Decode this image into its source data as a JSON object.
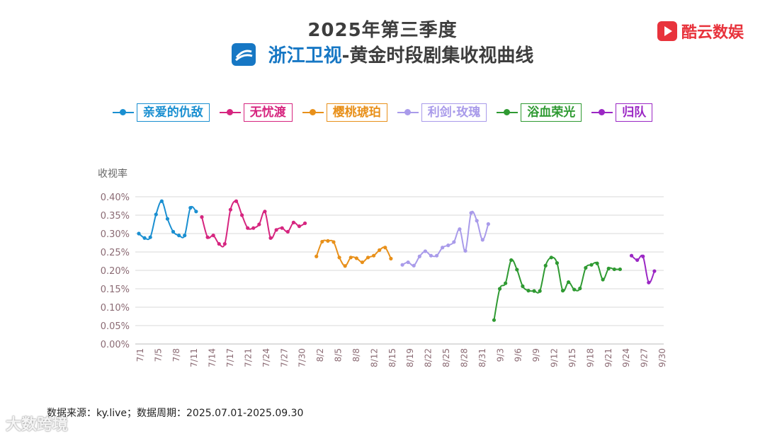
{
  "header": {
    "title_line1": "2025年第三季度",
    "channel": "浙江卫视",
    "subtitle_rest": "-黄金时段剧集收视曲线"
  },
  "brand": {
    "name": "酷云数娱"
  },
  "footer": {
    "source": "数据来源：ky.live；数据周期：2025.07.01-2025.09.30"
  },
  "watermark": "大数跨境",
  "colors": {
    "axis_tick": "#8b6b74",
    "grid": "#d9d9d9"
  },
  "chart_data": {
    "type": "line",
    "ylabel": "收视率",
    "ylim": [
      0,
      0.4
    ],
    "yticks": [
      "0.00%",
      "0.05%",
      "0.10%",
      "0.15%",
      "0.20%",
      "0.25%",
      "0.30%",
      "0.35%",
      "0.40%"
    ],
    "xrange": [
      "2025-07-01",
      "2025-09-30"
    ],
    "xticks": [
      "7/1",
      "7/5",
      "7/8",
      "7/11",
      "7/14",
      "7/17",
      "7/21",
      "7/24",
      "7/27",
      "7/30",
      "8/2",
      "8/5",
      "8/8",
      "8/12",
      "8/15",
      "8/19",
      "8/22",
      "8/25",
      "8/28",
      "8/31",
      "9/3",
      "9/6",
      "9/9",
      "9/12",
      "9/15",
      "9/18",
      "9/21",
      "9/24",
      "9/27",
      "9/30"
    ],
    "series": [
      {
        "name": "亲爱的仇敌",
        "color": "#1a8fd1",
        "points": [
          [
            "2025-07-01",
            0.3
          ],
          [
            "2025-07-02",
            0.288
          ],
          [
            "2025-07-03",
            0.29
          ],
          [
            "2025-07-04",
            0.352
          ],
          [
            "2025-07-05",
            0.388
          ],
          [
            "2025-07-06",
            0.34
          ],
          [
            "2025-07-07",
            0.305
          ],
          [
            "2025-07-08",
            0.295
          ],
          [
            "2025-07-09",
            0.295
          ],
          [
            "2025-07-10",
            0.37
          ],
          [
            "2025-07-11",
            0.36
          ]
        ]
      },
      {
        "name": "无忧渡",
        "color": "#d6257f",
        "points": [
          [
            "2025-07-12",
            0.345
          ],
          [
            "2025-07-13",
            0.29
          ],
          [
            "2025-07-14",
            0.295
          ],
          [
            "2025-07-15",
            0.272
          ],
          [
            "2025-07-16",
            0.272
          ],
          [
            "2025-07-17",
            0.365
          ],
          [
            "2025-07-18",
            0.388
          ],
          [
            "2025-07-19",
            0.35
          ],
          [
            "2025-07-20",
            0.315
          ],
          [
            "2025-07-21",
            0.315
          ],
          [
            "2025-07-22",
            0.325
          ],
          [
            "2025-07-23",
            0.36
          ],
          [
            "2025-07-24",
            0.288
          ],
          [
            "2025-07-25",
            0.31
          ],
          [
            "2025-07-26",
            0.315
          ],
          [
            "2025-07-27",
            0.305
          ],
          [
            "2025-07-28",
            0.33
          ],
          [
            "2025-07-29",
            0.32
          ],
          [
            "2025-07-30",
            0.328
          ]
        ]
      },
      {
        "name": "樱桃琥珀",
        "color": "#e8901a",
        "points": [
          [
            "2025-08-01",
            0.238
          ],
          [
            "2025-08-02",
            0.278
          ],
          [
            "2025-08-03",
            0.28
          ],
          [
            "2025-08-04",
            0.277
          ],
          [
            "2025-08-05",
            0.235
          ],
          [
            "2025-08-06",
            0.212
          ],
          [
            "2025-08-07",
            0.235
          ],
          [
            "2025-08-08",
            0.233
          ],
          [
            "2025-08-09",
            0.222
          ],
          [
            "2025-08-10",
            0.235
          ],
          [
            "2025-08-11",
            0.24
          ],
          [
            "2025-08-12",
            0.255
          ],
          [
            "2025-08-13",
            0.262
          ],
          [
            "2025-08-14",
            0.232
          ]
        ]
      },
      {
        "name": "利剑·玫瑰",
        "color": "#a99bea",
        "points": [
          [
            "2025-08-16",
            0.215
          ],
          [
            "2025-08-17",
            0.222
          ],
          [
            "2025-08-18",
            0.213
          ],
          [
            "2025-08-19",
            0.238
          ],
          [
            "2025-08-20",
            0.252
          ],
          [
            "2025-08-21",
            0.24
          ],
          [
            "2025-08-22",
            0.24
          ],
          [
            "2025-08-23",
            0.262
          ],
          [
            "2025-08-24",
            0.268
          ],
          [
            "2025-08-25",
            0.277
          ],
          [
            "2025-08-26",
            0.312
          ],
          [
            "2025-08-27",
            0.253
          ],
          [
            "2025-08-28",
            0.356
          ],
          [
            "2025-08-29",
            0.335
          ],
          [
            "2025-08-30",
            0.283
          ],
          [
            "2025-08-31",
            0.326
          ]
        ]
      },
      {
        "name": "浴血荣光",
        "color": "#2f9a32",
        "points": [
          [
            "2025-09-01",
            0.065
          ],
          [
            "2025-09-02",
            0.15
          ],
          [
            "2025-09-03",
            0.165
          ],
          [
            "2025-09-04",
            0.228
          ],
          [
            "2025-09-05",
            0.202
          ],
          [
            "2025-09-06",
            0.157
          ],
          [
            "2025-09-07",
            0.145
          ],
          [
            "2025-09-08",
            0.144
          ],
          [
            "2025-09-09",
            0.144
          ],
          [
            "2025-09-10",
            0.213
          ],
          [
            "2025-09-11",
            0.235
          ],
          [
            "2025-09-12",
            0.22
          ],
          [
            "2025-09-13",
            0.145
          ],
          [
            "2025-09-14",
            0.168
          ],
          [
            "2025-09-15",
            0.148
          ],
          [
            "2025-09-16",
            0.151
          ],
          [
            "2025-09-17",
            0.207
          ],
          [
            "2025-09-18",
            0.215
          ],
          [
            "2025-09-19",
            0.219
          ],
          [
            "2025-09-20",
            0.175
          ],
          [
            "2025-09-21",
            0.205
          ],
          [
            "2025-09-22",
            0.203
          ],
          [
            "2025-09-23",
            0.203
          ]
        ]
      },
      {
        "name": "归队",
        "color": "#9b27c4",
        "points": [
          [
            "2025-09-25",
            0.24
          ],
          [
            "2025-09-26",
            0.228
          ],
          [
            "2025-09-27",
            0.238
          ],
          [
            "2025-09-28",
            0.167
          ],
          [
            "2025-09-29",
            0.198
          ]
        ]
      }
    ]
  }
}
